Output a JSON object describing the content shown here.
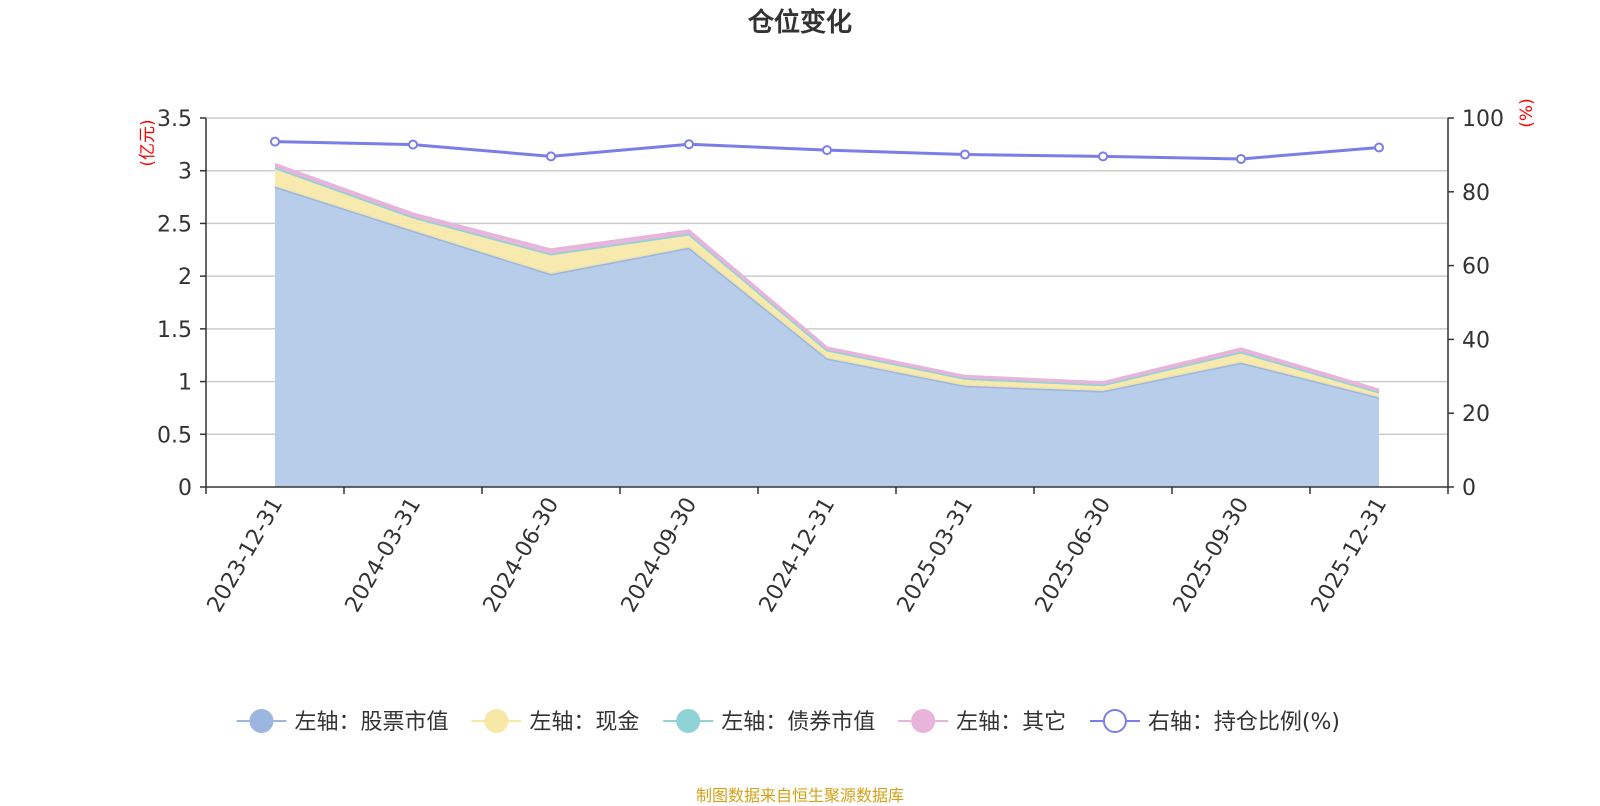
{
  "title": "仓位变化",
  "source": "制图数据来自恒生聚源数据库",
  "colors": {
    "stock": "#9bb7e0",
    "stock_fill": "#b8cdea",
    "cash": "#f7e8a6",
    "bond": "#8fd3d6",
    "other": "#e8b4dc",
    "ratio": "#7a7ee8",
    "axis_unit": "#ff0000"
  },
  "chart_data": {
    "type": "area",
    "title": "仓位变化",
    "x": [
      "2023-12-31",
      "2024-03-31",
      "2024-06-30",
      "2024-09-30",
      "2024-12-31",
      "2025-03-31",
      "2025-06-30",
      "2025-09-30",
      "2025-12-31"
    ],
    "left_axis": {
      "unit": "(亿元)",
      "ylim": [
        0,
        3.5
      ],
      "ticks": [
        "0",
        "0.5",
        "1",
        "1.5",
        "2",
        "2.5",
        "3",
        "3.5"
      ]
    },
    "right_axis": {
      "unit": "(%)",
      "ylim": [
        0,
        100
      ],
      "ticks": [
        "0",
        "20",
        "40",
        "60",
        "80",
        "100"
      ]
    },
    "series": [
      {
        "name": "左轴：股票市值",
        "axis": "left",
        "stacked": true,
        "values": [
          2.85,
          2.43,
          2.02,
          2.27,
          1.22,
          0.96,
          0.91,
          1.18,
          0.85
        ]
      },
      {
        "name": "左轴：现金",
        "axis": "left",
        "stacked": true,
        "values": [
          0.18,
          0.13,
          0.19,
          0.13,
          0.08,
          0.07,
          0.06,
          0.1,
          0.05
        ]
      },
      {
        "name": "左轴：债券市值",
        "axis": "left",
        "stacked": true,
        "values": [
          0,
          0,
          0,
          0,
          0,
          0,
          0,
          0,
          0
        ]
      },
      {
        "name": "左轴：其它",
        "axis": "left",
        "stacked": true,
        "values": [
          0.03,
          0.03,
          0.04,
          0.03,
          0.02,
          0.02,
          0.02,
          0.03,
          0.02
        ]
      },
      {
        "name": "右轴：持仓比例(%)",
        "axis": "right",
        "type": "line",
        "values": [
          93.6,
          92.8,
          89.6,
          92.9,
          91.3,
          90.1,
          89.6,
          88.9,
          92.0
        ]
      }
    ],
    "grid": true,
    "legend_position": "bottom"
  }
}
